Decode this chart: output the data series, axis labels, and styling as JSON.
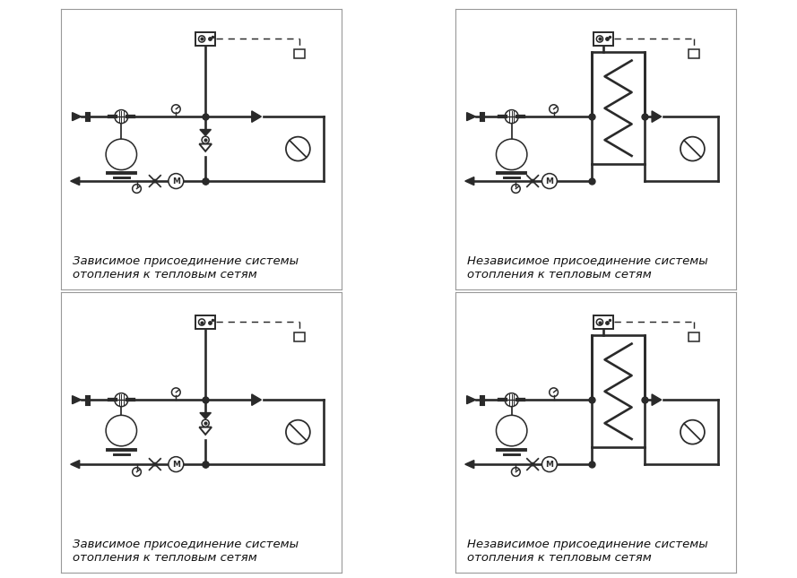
{
  "labels": [
    "Зависимое присоединение системы\nотопления к тепловым сетям",
    "Независимое присоединение системы\nотопления к тепловым сетям",
    "Зависимое присоединение системы\nотопления к тепловым сетям",
    "Независимое присоединение системы\nотопления к тепловым сетям"
  ],
  "bg_color": "#ffffff",
  "lc": "#2a2a2a",
  "lw": 1.4,
  "lw2": 1.9
}
